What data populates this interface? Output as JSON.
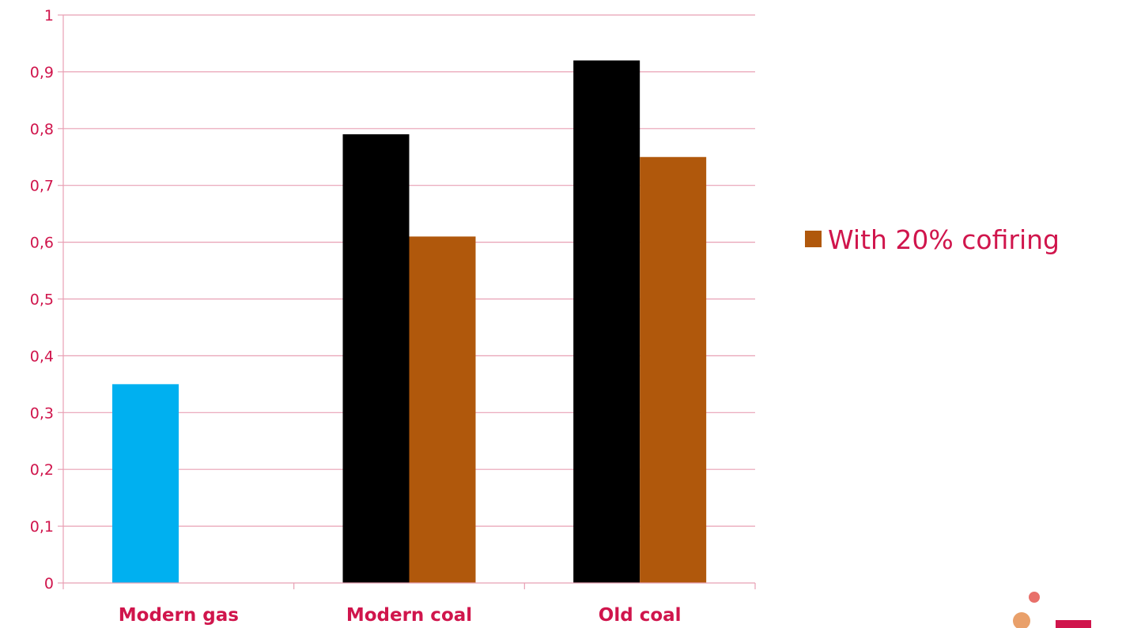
{
  "chart_data": {
    "type": "bar",
    "categories": [
      "Modern gas",
      "Modern coal",
      "Old coal"
    ],
    "series": [
      {
        "values": [
          0.35,
          null,
          null
        ],
        "color": "#00b0f0"
      },
      {
        "values": [
          null,
          0.79,
          0.92
        ],
        "color": "#000000"
      },
      {
        "name": "With 20% cofiring",
        "values": [
          null,
          0.61,
          0.75
        ],
        "color": "#b0580c"
      }
    ],
    "ylim": [
      0,
      1
    ],
    "yticks": [
      "0",
      "0,1",
      "0,2",
      "0,3",
      "0,4",
      "0,5",
      "0,6",
      "0,7",
      "0,8",
      "0,9",
      "1"
    ],
    "grid": true,
    "legend_position": "right",
    "colors": {
      "grid": "#e8a0b4",
      "text": "#d0154c",
      "axis": "#e8a0b4"
    }
  }
}
